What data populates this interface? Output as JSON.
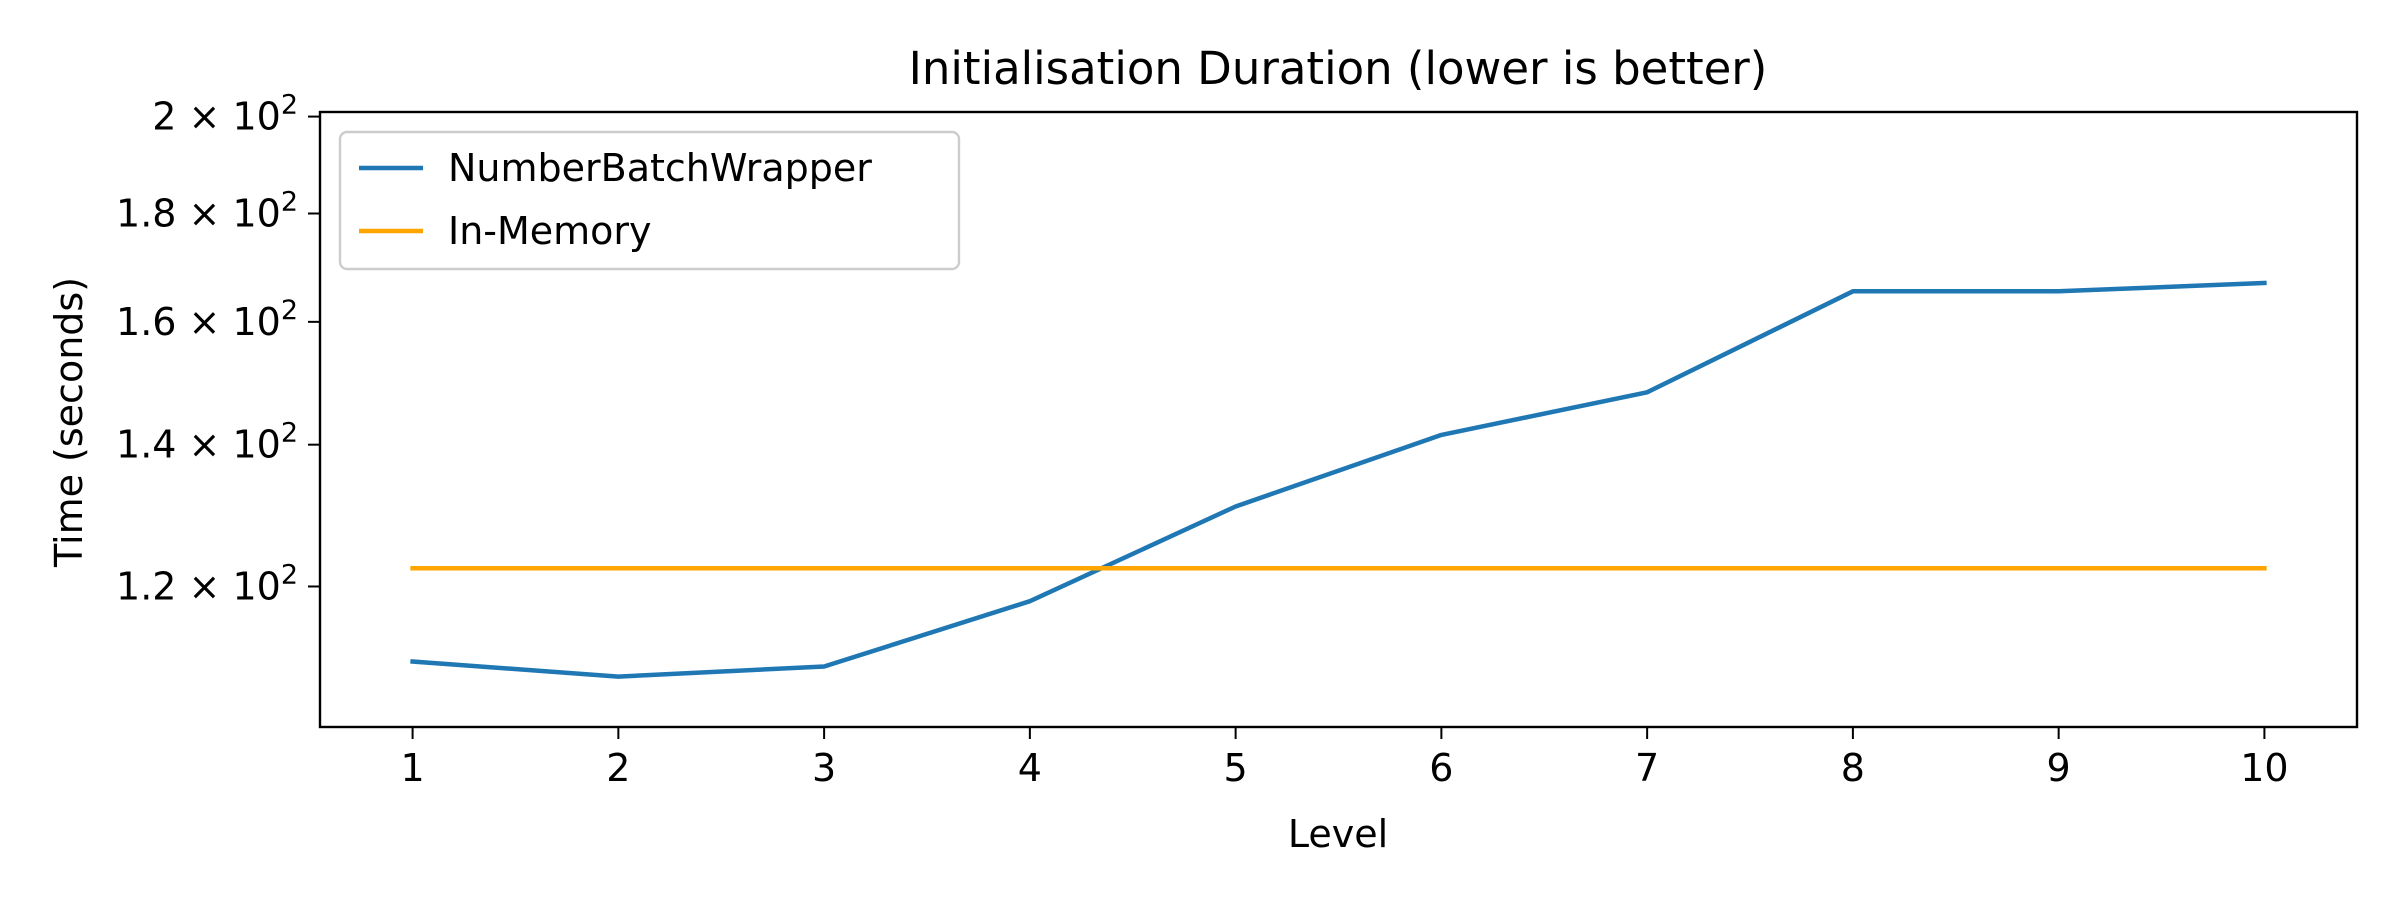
{
  "chart_data": {
    "type": "line",
    "title": "Initialisation Duration (lower is better)",
    "xlabel": "Level",
    "ylabel": "Time (seconds)",
    "x": [
      1,
      2,
      3,
      4,
      5,
      6,
      7,
      8,
      9,
      10
    ],
    "xlim": [
      0.55,
      10.45
    ],
    "ylim": [
      103,
      201
    ],
    "yscale": "log",
    "x_ticks": [
      1,
      2,
      3,
      4,
      5,
      6,
      7,
      8,
      9,
      10
    ],
    "y_ticks": [
      {
        "value": 120,
        "mantissa": "1.2"
      },
      {
        "value": 140,
        "mantissa": "1.4"
      },
      {
        "value": 160,
        "mantissa": "1.6"
      },
      {
        "value": 180,
        "mantissa": "1.8"
      },
      {
        "value": 200,
        "mantissa": "2"
      }
    ],
    "y_tick_suffix": "× 10",
    "y_tick_exponent": "2",
    "grid": false,
    "legend_position": "top-left",
    "series": [
      {
        "name": "NumberBatchWrapper",
        "color": "#1f77b4",
        "values": [
          110.6,
          108.8,
          110.0,
          118.1,
          130.9,
          141.5,
          148.2,
          165.4,
          165.4,
          166.9
        ]
      },
      {
        "name": "In-Memory",
        "color": "#ffa500",
        "values": [
          122.4,
          122.4,
          122.4,
          122.4,
          122.4,
          122.4,
          122.4,
          122.4,
          122.4,
          122.4
        ]
      }
    ]
  }
}
